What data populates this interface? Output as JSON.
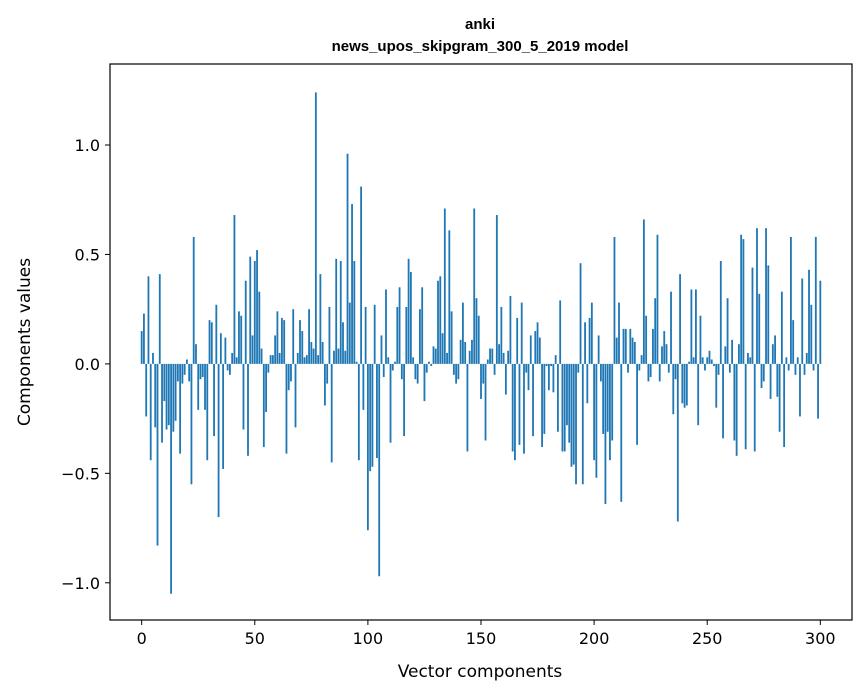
{
  "chart_data": {
    "type": "bar",
    "title": "anki",
    "subtitle": "news_upos_skipgram_300_5_2019 model",
    "xlabel": "Vector components",
    "ylabel": "Components values",
    "xlim": [
      -14,
      314
    ],
    "ylim": [
      -1.17,
      1.37
    ],
    "xticks": [
      0,
      50,
      100,
      150,
      200,
      250,
      300
    ],
    "yticks": [
      -1.0,
      -0.5,
      0.0,
      0.5,
      1.0
    ],
    "ytick_labels": [
      "−1.0",
      "−0.5",
      "0.0",
      "0.5",
      "1.0"
    ],
    "grid": false,
    "legend": "none",
    "bar_color": "#1f77b4",
    "x_start": 0,
    "values": [
      0.15,
      0.23,
      -0.24,
      0.4,
      -0.44,
      0.05,
      -0.29,
      -0.83,
      0.41,
      -0.36,
      -0.17,
      -0.3,
      -0.28,
      -1.05,
      -0.31,
      -0.26,
      -0.08,
      -0.41,
      -0.09,
      -0.05,
      0.02,
      -0.08,
      -0.55,
      0.58,
      0.09,
      -0.21,
      -0.07,
      -0.06,
      -0.21,
      -0.44,
      0.2,
      0.19,
      -0.33,
      0.27,
      -0.7,
      0.14,
      -0.48,
      0.12,
      -0.03,
      -0.05,
      0.05,
      0.68,
      0.03,
      0.24,
      0.22,
      -0.3,
      0.38,
      -0.42,
      0.49,
      0.13,
      0.47,
      0.52,
      0.33,
      0.07,
      -0.38,
      -0.22,
      -0.04,
      0.04,
      0.04,
      0.13,
      0.24,
      0.05,
      0.21,
      0.2,
      -0.41,
      -0.12,
      -0.08,
      0.25,
      -0.29,
      0.05,
      0.2,
      0.15,
      0.03,
      0.04,
      0.25,
      0.1,
      0.07,
      1.24,
      0.04,
      0.41,
      0.1,
      -0.19,
      -0.09,
      0.26,
      -0.45,
      0.06,
      0.48,
      0.07,
      0.47,
      0.19,
      0.06,
      0.96,
      0.28,
      0.73,
      0.47,
      0.01,
      -0.44,
      0.81,
      -0.21,
      0.26,
      -0.76,
      -0.49,
      -0.47,
      0.27,
      -0.43,
      -0.97,
      0.13,
      -0.06,
      0.34,
      0.03,
      -0.36,
      -0.03,
      0.01,
      0.26,
      0.35,
      -0.07,
      -0.33,
      0.26,
      0.48,
      0.42,
      0.03,
      -0.07,
      -0.09,
      0.25,
      0.35,
      -0.17,
      -0.04,
      0.01,
      -0.01,
      0.08,
      0.07,
      0.38,
      0.4,
      0.14,
      0.71,
      0.05,
      0.61,
      0.24,
      -0.05,
      -0.09,
      -0.07,
      0.11,
      0.28,
      0.1,
      -0.4,
      0.06,
      0.11,
      0.71,
      0.3,
      0.22,
      -0.16,
      -0.09,
      -0.35,
      0.02,
      0.07,
      0.07,
      -0.05,
      0.68,
      0.09,
      0.26,
      0.05,
      -0.14,
      0.06,
      0.31,
      -0.4,
      -0.44,
      0.21,
      -0.37,
      0.28,
      -0.41,
      -0.04,
      -0.12,
      0.13,
      -0.33,
      0.15,
      0.19,
      0.12,
      -0.38,
      -0.32,
      -0.01,
      -0.12,
      -0.01,
      -0.13,
      0.04,
      -0.31,
      0.29,
      -0.4,
      -0.4,
      -0.28,
      -0.36,
      -0.47,
      -0.46,
      -0.55,
      -0.04,
      0.46,
      -0.55,
      0.19,
      -0.18,
      0.21,
      0.28,
      -0.44,
      -0.52,
      0.13,
      -0.08,
      -0.32,
      -0.64,
      -0.31,
      -0.44,
      -0.35,
      0.58,
      0.12,
      0.28,
      -0.63,
      0.16,
      0.16,
      -0.04,
      0.16,
      0.12,
      0.1,
      -0.37,
      -0.03,
      0.04,
      0.66,
      0.22,
      -0.08,
      -0.06,
      0.16,
      0.3,
      0.59,
      -0.08,
      0.08,
      0.15,
      0.09,
      -0.04,
      0.33,
      -0.23,
      -0.07,
      -0.72,
      0.41,
      -0.18,
      -0.2,
      -0.19,
      0.01,
      0.34,
      0.03,
      0.34,
      -0.28,
      0.22,
      0.03,
      -0.03,
      0.03,
      0.06,
      0.02,
      -0.01,
      -0.2,
      -0.05,
      0.47,
      -0.34,
      0.08,
      0.3,
      -0.04,
      0.11,
      -0.35,
      -0.42,
      0.09,
      0.59,
      0.57,
      -0.39,
      0.05,
      0.03,
      0.44,
      -0.4,
      0.62,
      0.32,
      -0.11,
      -0.08,
      0.62,
      0.45,
      -0.16,
      0.09,
      0.13,
      -0.15,
      -0.31,
      0.33,
      -0.38,
      0.03,
      -0.03,
      0.58,
      0.2,
      -0.05,
      0.03,
      -0.24,
      0.39,
      -0.05,
      0.05,
      0.43,
      0.27,
      -0.03,
      0.58,
      -0.25,
      0.38
    ]
  }
}
